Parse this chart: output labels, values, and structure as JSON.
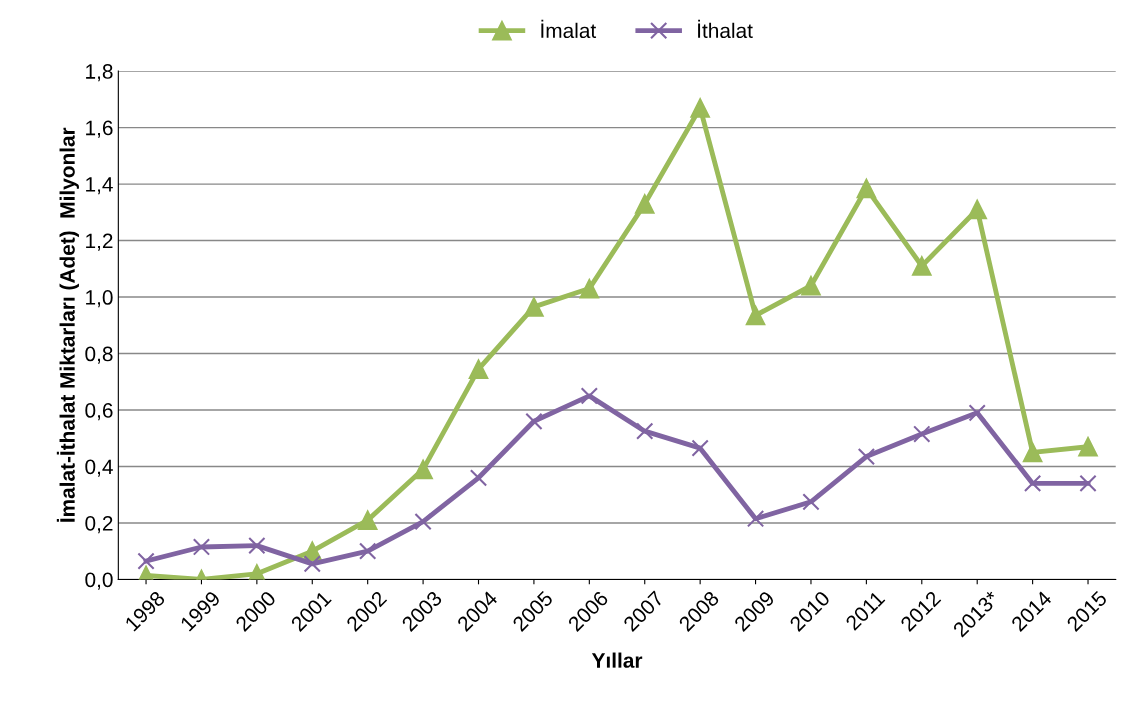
{
  "chart_data": {
    "type": "line",
    "xlabel": "Yıllar",
    "ylabel": "İmalat-İthalat Miktarları (Adet)  Milyonlar",
    "categories": [
      "1998",
      "1999",
      "2000",
      "2001",
      "2002",
      "2003",
      "2004",
      "2005",
      "2006",
      "2007",
      "2008",
      "2009",
      "2010",
      "2011",
      "2012",
      "2013*",
      "2014",
      "2015"
    ],
    "series": [
      {
        "name": "İmalat",
        "color": "#9bbb59",
        "marker": "triangle",
        "values": [
          0.014,
          0.0,
          0.02,
          0.1,
          0.21,
          0.39,
          0.745,
          0.965,
          1.03,
          1.33,
          1.67,
          0.935,
          1.04,
          1.385,
          1.11,
          1.31,
          0.45,
          0.47
        ]
      },
      {
        "name": "İthalat",
        "color": "#8064a2",
        "marker": "cross",
        "values": [
          0.065,
          0.115,
          0.12,
          0.055,
          0.1,
          0.205,
          0.36,
          0.56,
          0.65,
          0.525,
          0.465,
          0.215,
          0.275,
          0.435,
          0.515,
          0.59,
          0.34,
          0.34
        ]
      }
    ],
    "ylim": [
      0,
      1.8
    ],
    "yticks": [
      {
        "value": 0,
        "label": "0,0"
      },
      {
        "value": 0.2,
        "label": "0,2"
      },
      {
        "value": 0.4,
        "label": "0,4"
      },
      {
        "value": 0.6,
        "label": "0,6"
      },
      {
        "value": 0.8,
        "label": "0,8"
      },
      {
        "value": 1.0,
        "label": "1,0"
      },
      {
        "value": 1.2,
        "label": "1,2"
      },
      {
        "value": 1.4,
        "label": "1,4"
      },
      {
        "value": 1.6,
        "label": "1,6"
      },
      {
        "value": 1.8,
        "label": "1,8"
      }
    ],
    "grid": "y",
    "legend": "top",
    "line_style": "solid"
  }
}
